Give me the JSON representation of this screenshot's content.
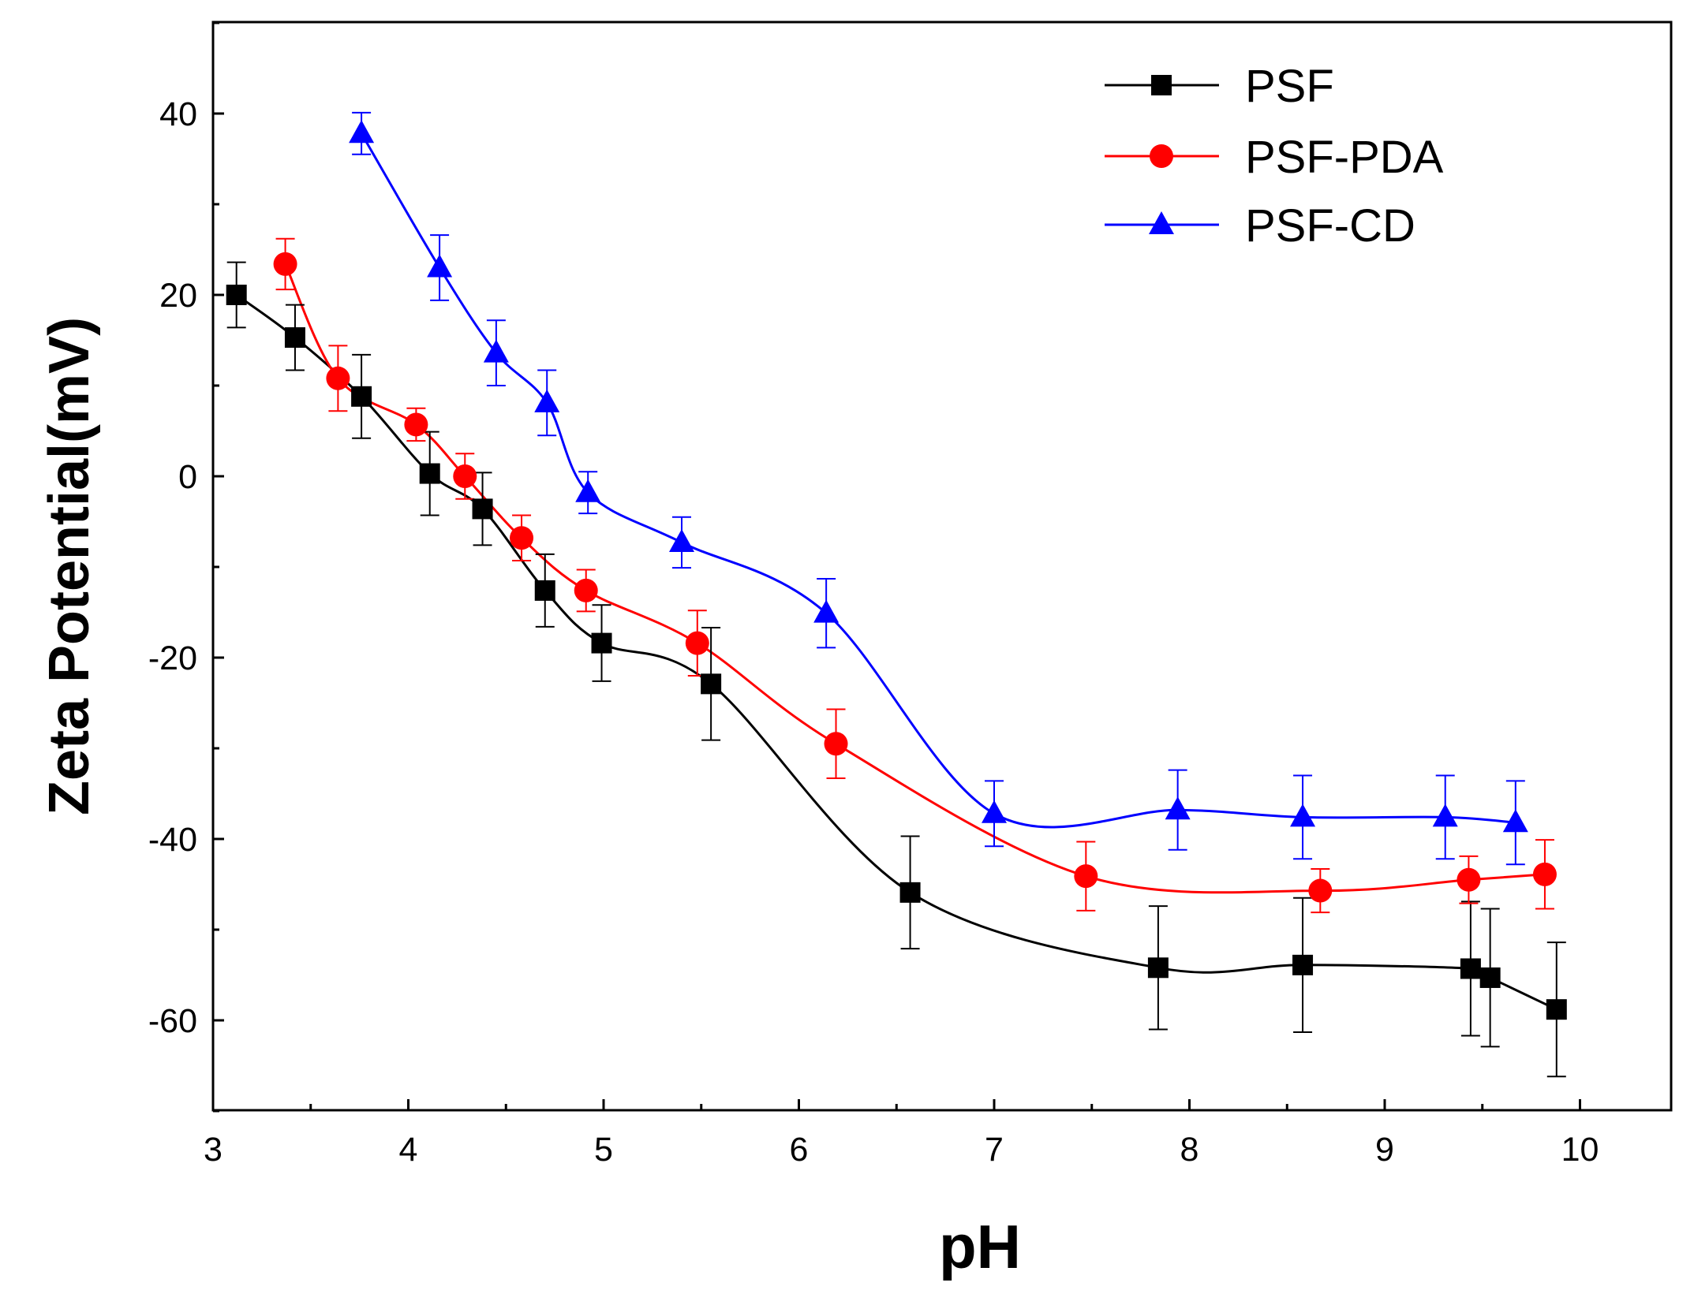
{
  "chart_data": {
    "type": "line",
    "title": "",
    "xlabel": "pH",
    "ylabel": "Zeta Potential(mV)",
    "xlim": [
      3,
      10.5
    ],
    "ylim": [
      -70,
      50
    ],
    "x_ticks": [
      3,
      4,
      5,
      6,
      7,
      8,
      9,
      10
    ],
    "y_ticks": [
      -60,
      -40,
      -20,
      0,
      20,
      40
    ],
    "x_tick_labels": [
      "3",
      "4",
      "5",
      "6",
      "7",
      "8",
      "9",
      "10"
    ],
    "y_tick_labels": [
      "-60",
      "-40",
      "-20",
      "0",
      "20",
      "40"
    ],
    "legend_position": "top-right",
    "series": [
      {
        "name": "PSF",
        "color": "#000000",
        "marker": "square",
        "x": [
          3.12,
          3.42,
          3.76,
          4.11,
          4.38,
          4.7,
          4.99,
          5.55,
          6.57,
          7.84,
          8.58,
          9.44,
          9.54,
          9.88
        ],
        "y": [
          20.0,
          15.3,
          8.8,
          0.3,
          -3.6,
          -12.6,
          -18.4,
          -22.9,
          -45.9,
          -54.2,
          -53.9,
          -54.3,
          -55.3,
          -58.8
        ],
        "err": [
          3.6,
          3.6,
          4.6,
          4.6,
          4.0,
          4.0,
          4.2,
          6.2,
          6.2,
          6.8,
          7.4,
          7.4,
          7.6,
          7.4
        ]
      },
      {
        "name": "PSF-PDA",
        "color": "#ff0000",
        "marker": "circle",
        "x": [
          3.37,
          3.64,
          4.04,
          4.29,
          4.58,
          4.91,
          5.48,
          6.19,
          7.47,
          8.67,
          9.43,
          9.82
        ],
        "y": [
          23.4,
          10.8,
          5.7,
          0.0,
          -6.8,
          -12.6,
          -18.4,
          -29.5,
          -44.1,
          -45.7,
          -44.5,
          -43.9
        ],
        "err": [
          2.8,
          3.6,
          1.8,
          2.5,
          2.5,
          2.3,
          3.6,
          3.8,
          3.8,
          2.4,
          2.6,
          3.8
        ]
      },
      {
        "name": "PSF-CD",
        "color": "#0000ff",
        "marker": "triangle",
        "x": [
          3.76,
          4.16,
          4.45,
          4.71,
          4.92,
          5.4,
          6.14,
          7.0,
          7.94,
          8.58,
          9.31,
          9.67
        ],
        "y": [
          37.8,
          23.0,
          13.6,
          8.1,
          -1.8,
          -7.3,
          -15.1,
          -37.2,
          -36.8,
          -37.6,
          -37.6,
          -38.2
        ],
        "err": [
          2.3,
          3.6,
          3.6,
          3.6,
          2.3,
          2.8,
          3.8,
          3.6,
          4.4,
          4.6,
          4.6,
          4.6
        ]
      }
    ]
  }
}
